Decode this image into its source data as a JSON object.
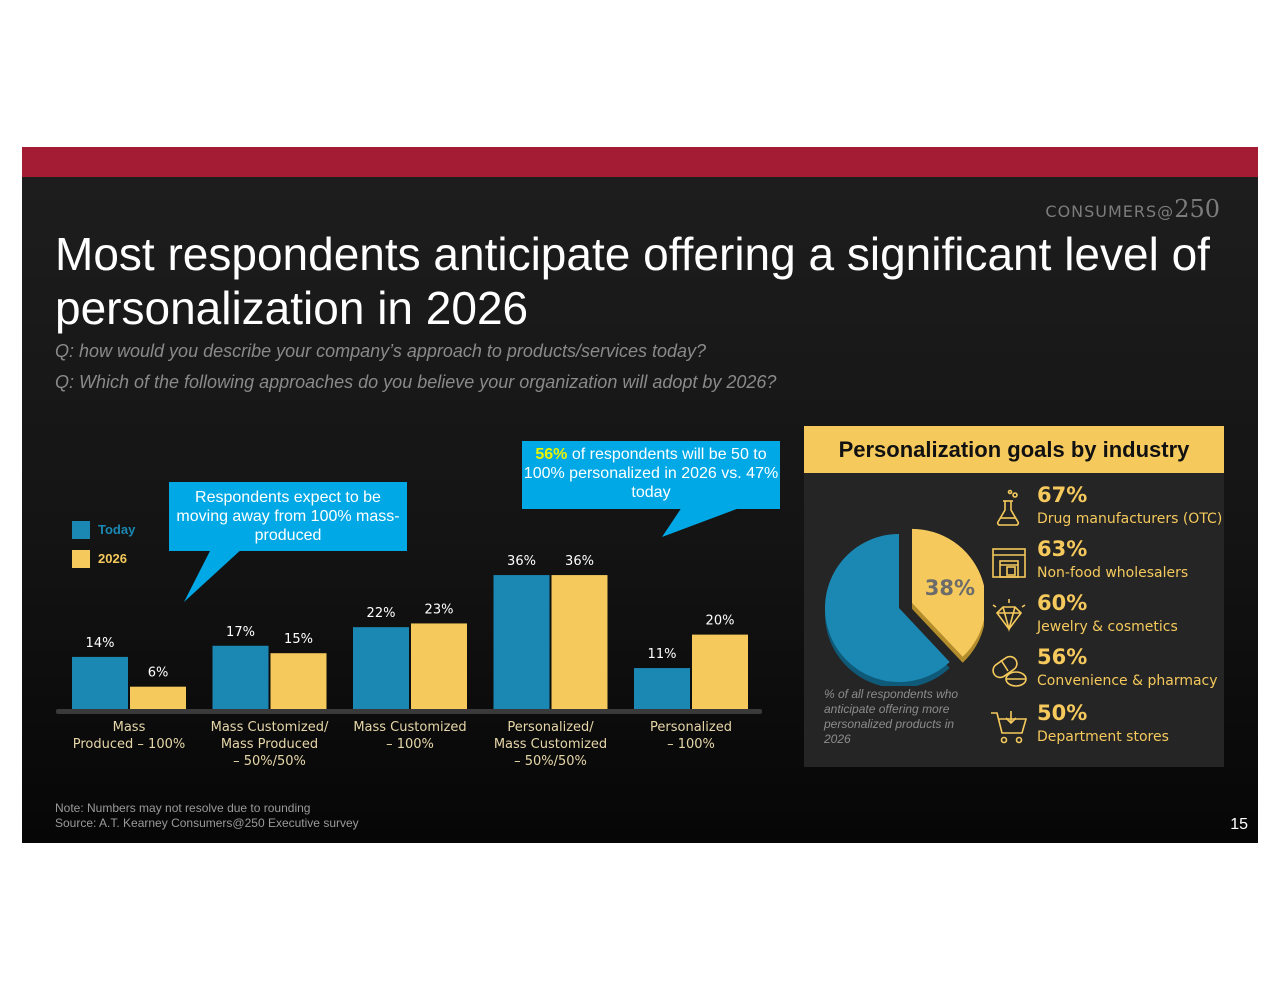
{
  "brand": {
    "text": "CONSUMERS@",
    "number": "250"
  },
  "title": "Most respondents anticipate offering a significant level of personalization in 2026",
  "questions": [
    "Q: how would you describe your company’s approach to products/services today?",
    "Q: Which of the following approaches do you believe your organization will adopt by 2026?"
  ],
  "callouts": {
    "left": "Respondents expect to be moving away from 100% mass-produced",
    "right_highlight": "56%",
    "right_rest": " of respondents will be 50 to 100% personalized in 2026 vs. 47% today"
  },
  "colors": {
    "today": "#1b88b3",
    "y2026": "#f5c95c",
    "accent_bar": "#a31c33",
    "callout": "#00a9e6"
  },
  "chart_data": {
    "type": "bar",
    "categories": [
      [
        "Mass",
        "Produced – 100%"
      ],
      [
        "Mass Customized/",
        "Mass Produced",
        "– 50%/50%"
      ],
      [
        "Mass Customized",
        "– 100%"
      ],
      [
        "Personalized/",
        "Mass Customized",
        "– 50%/50%"
      ],
      [
        "Personalized",
        "– 100%"
      ]
    ],
    "series": [
      {
        "name": "Today",
        "values": [
          14,
          17,
          22,
          36,
          11
        ],
        "labels": [
          "14%",
          "17%",
          "22%",
          "36%",
          "11%"
        ]
      },
      {
        "name": "2026",
        "values": [
          6,
          15,
          23,
          36,
          20
        ],
        "labels": [
          "6%",
          "15%",
          "23%",
          "36%",
          "20%"
        ]
      }
    ],
    "ylim": [
      0,
      40
    ],
    "legend": "left"
  },
  "panel": {
    "heading": "Personalization goals by industry",
    "donut": {
      "value": 38,
      "label": "38%",
      "caption": "% of all respondents who anticipate offering more personalized products  in 2026"
    },
    "industries": [
      {
        "pct": "67%",
        "label": "Drug manufacturers (OTC)",
        "icon": "flask-icon"
      },
      {
        "pct": "63%",
        "label": "Non-food wholesalers",
        "icon": "warehouse-icon"
      },
      {
        "pct": "60%",
        "label": "Jewelry & cosmetics",
        "icon": "diamond-icon"
      },
      {
        "pct": "56%",
        "label": "Convenience & pharmacy",
        "icon": "pill-icon"
      },
      {
        "pct": "50%",
        "label": "Department stores",
        "icon": "shopping-cart-icon"
      }
    ]
  },
  "note": "Note: Numbers may not resolve due to rounding",
  "source": "Source: A.T. Kearney Consumers@250 Executive survey",
  "page_number": "15"
}
